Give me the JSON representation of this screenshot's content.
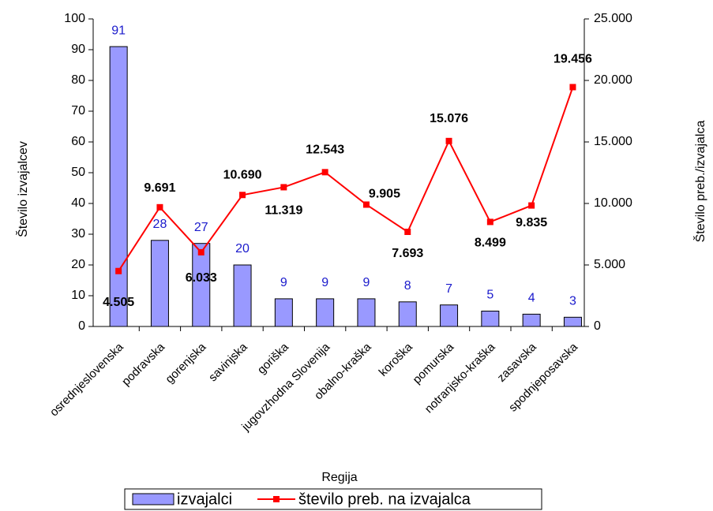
{
  "chart_data": {
    "type": "combo",
    "categories": [
      "osrednjeslovenska",
      "podravska",
      "gorenjska",
      "savinjska",
      "goriška",
      "jugovzhodna Slovenija",
      "obalno-kraška",
      "koroška",
      "pomurska",
      "notranjsko-kraška",
      "zasavska",
      "spodnjeposavska"
    ],
    "series": [
      {
        "name": "izvajalci",
        "type": "bar",
        "color": "#9999ff",
        "values": [
          91,
          28,
          27,
          20,
          9,
          9,
          9,
          8,
          7,
          5,
          4,
          3
        ]
      },
      {
        "name": "število preb. na izvajalca",
        "type": "line",
        "axis": "y2",
        "color": "#ff0000",
        "values": [
          4505,
          9691,
          6033,
          10690,
          11319,
          12543,
          9905,
          7693,
          15076,
          8499,
          9835,
          19456
        ],
        "value_labels": [
          "4.505",
          "9.691",
          "6.033",
          "10.690",
          "11.319",
          "12.543",
          "9.905",
          "7.693",
          "15.076",
          "8.499",
          "9.835",
          "19.456"
        ]
      }
    ],
    "xlabel": "Regija",
    "ylabel": "Število izvajalcev",
    "y2label": "Število preb./izvajalca",
    "ylim": [
      0,
      100
    ],
    "yticks": [
      0,
      10,
      20,
      30,
      40,
      50,
      60,
      70,
      80,
      90,
      100
    ],
    "y2lim": [
      0,
      25000
    ],
    "y2ticks": [
      0,
      {
        "value": 5000,
        "label": "5.000"
      },
      {
        "value": 10000,
        "label": "10.000"
      },
      {
        "value": 15000,
        "label": "15.000"
      },
      {
        "value": 20000,
        "label": "20.000"
      },
      {
        "value": 25000,
        "label": "25.000"
      }
    ],
    "legend": "bottom"
  }
}
